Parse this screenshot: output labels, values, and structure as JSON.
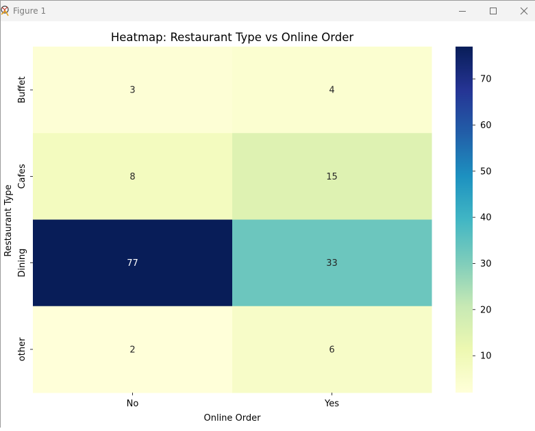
{
  "window": {
    "title": "Figure 1",
    "icons": {
      "app": "matplotlib-figure-icon",
      "minimize": "minimize-icon",
      "maximize": "maximize-icon",
      "close": "close-icon"
    }
  },
  "chart_data": {
    "type": "heatmap",
    "title": "Heatmap: Restaurant Type vs Online Order",
    "xlabel": "Online Order",
    "ylabel": "Restaurant Type",
    "x_categories": [
      "No",
      "Yes"
    ],
    "y_categories": [
      "Buffet",
      "Cafes",
      "Dining",
      "other"
    ],
    "values": [
      [
        3,
        4
      ],
      [
        8,
        15
      ],
      [
        77,
        33
      ],
      [
        2,
        6
      ]
    ],
    "annotations": true,
    "colormap": "YlGnBu",
    "vmin": 2,
    "vmax": 77,
    "colorbar_ticks": [
      10,
      20,
      30,
      40,
      50,
      60,
      70
    ],
    "grid": false
  }
}
